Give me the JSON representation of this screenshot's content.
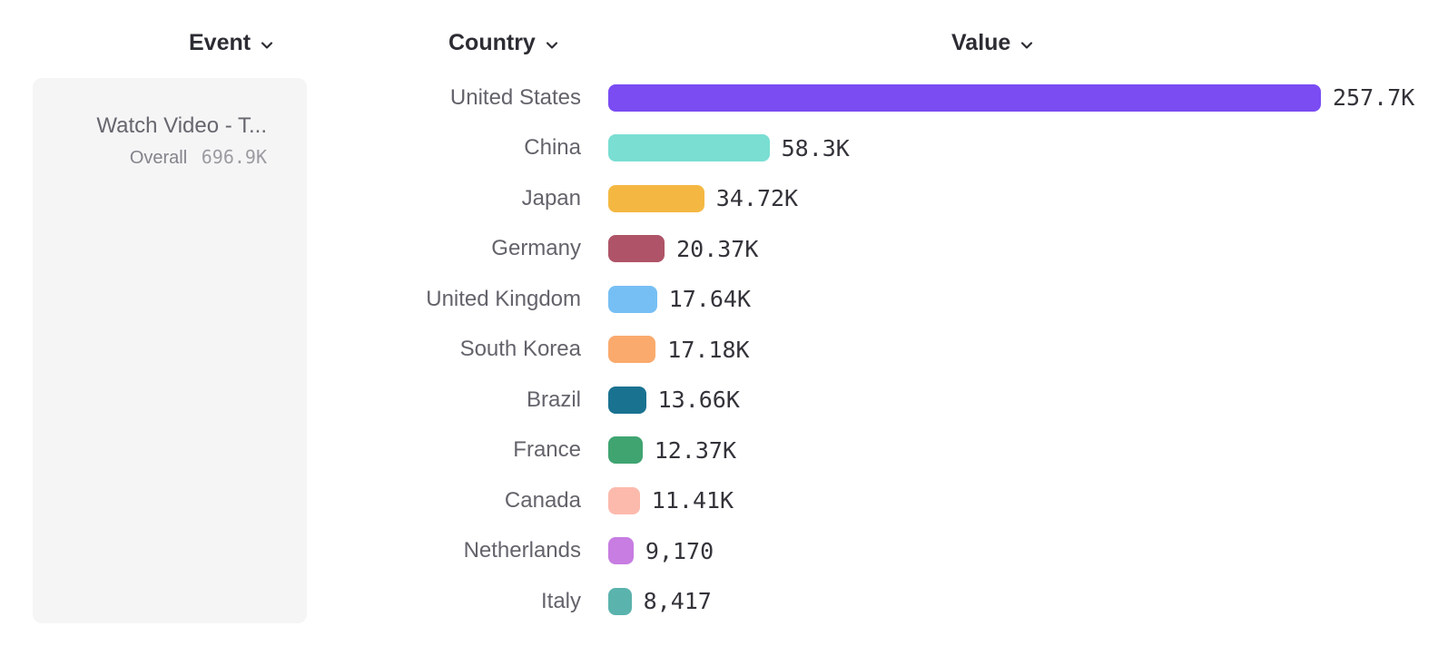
{
  "header": {
    "columns": [
      {
        "id": "event",
        "label": "Event"
      },
      {
        "id": "country",
        "label": "Country"
      },
      {
        "id": "value",
        "label": "Value"
      }
    ]
  },
  "event_card": {
    "event_name": "Watch Video - T...",
    "metric_label": "Overall",
    "metric_value": "696.9K"
  },
  "chart_data": {
    "type": "bar",
    "orientation": "horizontal",
    "title": "",
    "xlabel": "Value",
    "ylabel": "Country",
    "categories": [
      "United States",
      "China",
      "Japan",
      "Germany",
      "United Kingdom",
      "South Korea",
      "Brazil",
      "France",
      "Canada",
      "Netherlands",
      "Italy"
    ],
    "values": [
      257700,
      58300,
      34720,
      20370,
      17640,
      17180,
      13660,
      12370,
      11410,
      9170,
      8417
    ],
    "value_labels": [
      "257.7K",
      "58.3K",
      "34.72K",
      "20.37K",
      "17.64K",
      "17.18K",
      "13.66K",
      "12.37K",
      "11.41K",
      "9,170",
      "8,417"
    ],
    "colors": [
      "#7A4CF2",
      "#7ADED2",
      "#F4B842",
      "#AF5468",
      "#76BFF4",
      "#FAAA6D",
      "#1A7291",
      "#40A471",
      "#FCBAAD",
      "#C77DE1",
      "#5BB3AD"
    ],
    "xlim": [
      0,
      257700
    ],
    "grid": false,
    "legend_position": "none"
  },
  "colors": {
    "header_text": "#2C2C33",
    "country_label": "#63636B",
    "value_label": "#33333A",
    "card_background": "#F5F5F6",
    "event_name_text": "#66666E",
    "metric_label_text": "#83838B",
    "metric_value_text": "#9B9BA1",
    "background": "#FFFFFF"
  }
}
